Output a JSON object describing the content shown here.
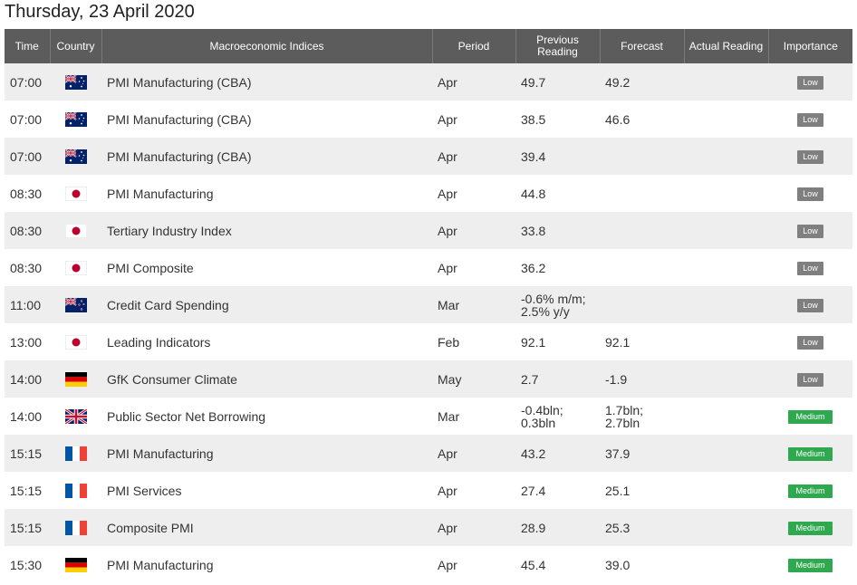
{
  "page": {
    "title": "Thursday, 23 April 2020"
  },
  "columns": [
    "Time",
    "Country",
    "Macroeconomic Indices",
    "Period",
    "Previous Reading",
    "Forecast",
    "Actual Reading",
    "Importance"
  ],
  "colors": {
    "header_bg": "#5c5c5c",
    "low": "#7f7f7f",
    "medium": "#2fa84f",
    "row_alt": "#eeeeee"
  },
  "rows": [
    {
      "time": "07:00",
      "country_icon": "australia-flag-icon",
      "index": "PMI Manufacturing (CBA)",
      "period": "Apr",
      "previous": [
        "49.7"
      ],
      "forecast": [
        "49.2"
      ],
      "actual": "",
      "importance": "Low"
    },
    {
      "time": "07:00",
      "country_icon": "australia-flag-icon",
      "index": "PMI Manufacturing (CBA)",
      "period": "Apr",
      "previous": [
        "38.5"
      ],
      "forecast": [
        "46.6"
      ],
      "actual": "",
      "importance": "Low"
    },
    {
      "time": "07:00",
      "country_icon": "australia-flag-icon",
      "index": "PMI Manufacturing (CBA)",
      "period": "Apr",
      "previous": [
        "39.4"
      ],
      "forecast": [],
      "actual": "",
      "importance": "Low"
    },
    {
      "time": "08:30",
      "country_icon": "japan-flag-icon",
      "index": "PMI Manufacturing",
      "period": "Apr",
      "previous": [
        "44.8"
      ],
      "forecast": [],
      "actual": "",
      "importance": "Low"
    },
    {
      "time": "08:30",
      "country_icon": "japan-flag-icon",
      "index": "Tertiary Industry Index",
      "period": "Apr",
      "previous": [
        "33.8"
      ],
      "forecast": [],
      "actual": "",
      "importance": "Low"
    },
    {
      "time": "08:30",
      "country_icon": "japan-flag-icon",
      "index": "PMI Composite",
      "period": "Apr",
      "previous": [
        "36.2"
      ],
      "forecast": [],
      "actual": "",
      "importance": "Low"
    },
    {
      "time": "11:00",
      "country_icon": "new-zealand-flag-icon",
      "index": "Credit Card Spending",
      "period": "Mar",
      "previous": [
        "-0.6% m/m;",
        "2.5% y/y"
      ],
      "forecast": [],
      "actual": "",
      "importance": "Low"
    },
    {
      "time": "13:00",
      "country_icon": "japan-flag-icon",
      "index": "Leading Indicators",
      "period": "Feb",
      "previous": [
        "92.1"
      ],
      "forecast": [
        "92.1"
      ],
      "actual": "",
      "importance": "Low"
    },
    {
      "time": "14:00",
      "country_icon": "germany-flag-icon",
      "index": "GfK Consumer Climate",
      "period": "May",
      "previous": [
        "2.7"
      ],
      "forecast": [
        "-1.9"
      ],
      "actual": "",
      "importance": "Low"
    },
    {
      "time": "14:00",
      "country_icon": "uk-flag-icon",
      "index": "Public Sector Net Borrowing",
      "period": "Mar",
      "previous": [
        "-0.4bln;",
        "0.3bln"
      ],
      "forecast": [
        "1.7bln;",
        "2.7bln"
      ],
      "actual": "",
      "importance": "Medium"
    },
    {
      "time": "15:15",
      "country_icon": "france-flag-icon",
      "index": "PMI Manufacturing",
      "period": "Apr",
      "previous": [
        "43.2"
      ],
      "forecast": [
        "37.9"
      ],
      "actual": "",
      "importance": "Medium"
    },
    {
      "time": "15:15",
      "country_icon": "france-flag-icon",
      "index": "PMI Services",
      "period": "Apr",
      "previous": [
        "27.4"
      ],
      "forecast": [
        "25.1"
      ],
      "actual": "",
      "importance": "Medium"
    },
    {
      "time": "15:15",
      "country_icon": "france-flag-icon",
      "index": "Composite PMI",
      "period": "Apr",
      "previous": [
        "28.9"
      ],
      "forecast": [
        "25.3"
      ],
      "actual": "",
      "importance": "Medium"
    },
    {
      "time": "15:30",
      "country_icon": "germany-flag-icon",
      "index": "PMI Manufacturing",
      "period": "Apr",
      "previous": [
        "45.4"
      ],
      "forecast": [
        "39.0"
      ],
      "actual": "",
      "importance": "Medium"
    }
  ]
}
